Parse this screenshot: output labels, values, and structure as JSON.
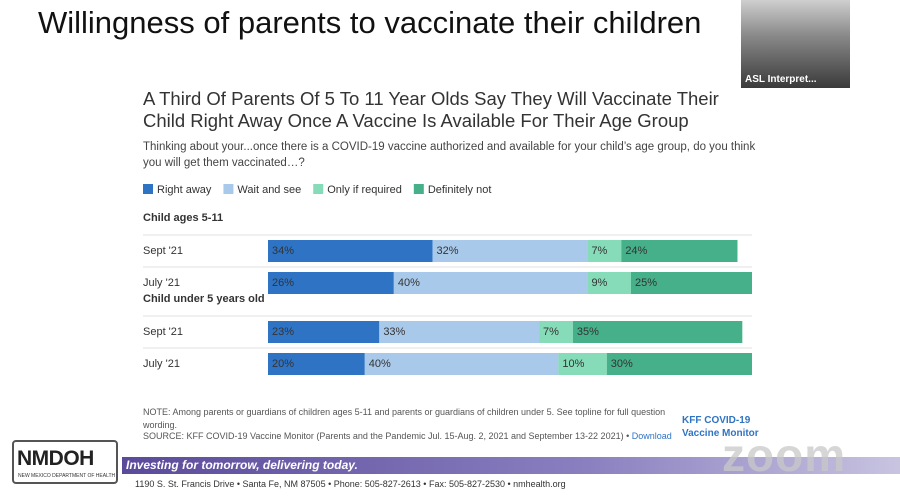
{
  "slide": {
    "title": "Willingness of parents to vaccinate their children",
    "asl_label": "ASL Interpret..."
  },
  "chart_data": {
    "type": "stacked-bar",
    "title": "A Third Of Parents Of 5 To 11 Year Olds Say They Will Vaccinate Their Child Right Away Once A Vaccine Is Available For Their Age Group",
    "subtitle": "Thinking about your...once there is a COVID-19 vaccine authorized and available for your child’s age group, do you think you will get them vaccinated…?",
    "groups": [
      {
        "name": "Child ages 5-11",
        "categories": [
          "Sept '21",
          "July '21"
        ]
      },
      {
        "name": "Child under 5 years old",
        "categories": [
          "Sept '21",
          "July '21"
        ]
      }
    ],
    "series": [
      {
        "name": "Right away",
        "color": "#2f74c4",
        "values": [
          34,
          26,
          23,
          20
        ],
        "value_labels": [
          "34%",
          "26%",
          "23%",
          "20%"
        ]
      },
      {
        "name": "Wait and see",
        "color": "#a9c9ea",
        "values": [
          32,
          40,
          33,
          40
        ],
        "value_labels": [
          "32%",
          "40%",
          "33%",
          "40%"
        ]
      },
      {
        "name": "Only if required",
        "color": "#86dcb8",
        "values": [
          7,
          9,
          7,
          10
        ],
        "value_labels": [
          "7%",
          "9%",
          "7%",
          "10%"
        ]
      },
      {
        "name": "Definitely not",
        "color": "#46b08a",
        "values": [
          24,
          25,
          35,
          30
        ],
        "value_labels": [
          "24%",
          "25%",
          "35%",
          "30%"
        ]
      }
    ],
    "xlim": [
      0,
      100
    ],
    "note": "NOTE: Among parents or guardians of children ages 5-11 and parents or guardians of children under 5. See topline for full question wording.",
    "source": "SOURCE: KFF COVID-19 Vaccine Monitor (Parents and the Pandemic Jul. 15-Aug. 2, 2021 and September 13-22 2021) •",
    "download": "Download",
    "brand_line1": "KFF COVID-19",
    "brand_line2": "Vaccine Monitor"
  },
  "footer": {
    "logo": "NMDOH",
    "logo_sub": "NEW MEXICO DEPARTMENT OF HEALTH",
    "slogan": "Investing for tomorrow, delivering today.",
    "address": "1190 S. St. Francis Drive • Santa Fe, NM 87505 • Phone: 505-827-2613 • Fax: 505-827-2530 • nmhealth.org"
  },
  "watermark": "zoom"
}
